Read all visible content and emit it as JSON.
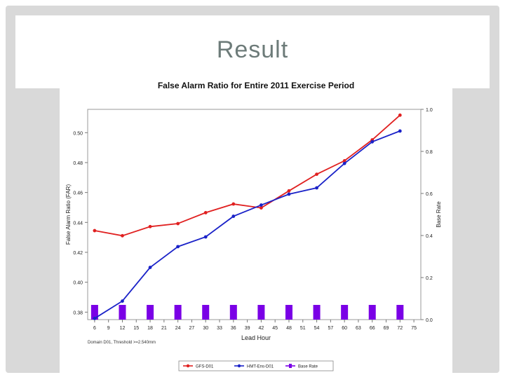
{
  "slide": {
    "title": "Result"
  },
  "chart_data": {
    "type": "line",
    "title": "False Alarm Ratio for Entire 2011 Exercise Period",
    "xlabel": "Lead Hour",
    "ylabel": "False Alarm Ratio (FAR)",
    "y2label": "Base Rate",
    "footnote": "Domain D01, Threshold >=2.540mm",
    "x_ticks": [
      "6",
      "9",
      "12",
      "15",
      "18",
      "21",
      "24",
      "27",
      "30",
      "33",
      "36",
      "39",
      "42",
      "45",
      "48",
      "51",
      "54",
      "57",
      "60",
      "63",
      "66",
      "69",
      "72",
      "75"
    ],
    "xlim": [
      4.5,
      76.5
    ],
    "ylim": [
      0.375,
      0.5156
    ],
    "y_ticks": [
      "0.38",
      "0.40",
      "0.42",
      "0.44",
      "0.46",
      "0.48",
      "0.50"
    ],
    "y2lim": [
      0.0,
      1.0
    ],
    "y2_ticks": [
      "0.0",
      "0.2",
      "0.4",
      "0.6",
      "0.8",
      "1.0"
    ],
    "x": [
      6,
      12,
      18,
      24,
      30,
      36,
      42,
      48,
      54,
      60,
      66,
      72
    ],
    "series": [
      {
        "name": "GFS-D01",
        "type": "line",
        "axis": "left",
        "color": "#e02020",
        "values": [
          0.4345,
          0.4311,
          0.4372,
          0.4392,
          0.4465,
          0.4523,
          0.4497,
          0.4611,
          0.4722,
          0.4812,
          0.4952,
          0.5117
        ]
      },
      {
        "name": "HMT-Ens-D01",
        "type": "line",
        "axis": "left",
        "color": "#1a22c8",
        "values": [
          0.3758,
          0.3874,
          0.4099,
          0.4238,
          0.4303,
          0.4441,
          0.4516,
          0.4589,
          0.4631,
          0.4794,
          0.4939,
          0.5011
        ]
      },
      {
        "name": "Base Rate",
        "type": "bar",
        "axis": "right",
        "color": "#7a00e6",
        "values": [
          0.07,
          0.07,
          0.07,
          0.07,
          0.07,
          0.07,
          0.07,
          0.07,
          0.07,
          0.07,
          0.07,
          0.07
        ]
      }
    ],
    "legend_position": "bottom"
  }
}
